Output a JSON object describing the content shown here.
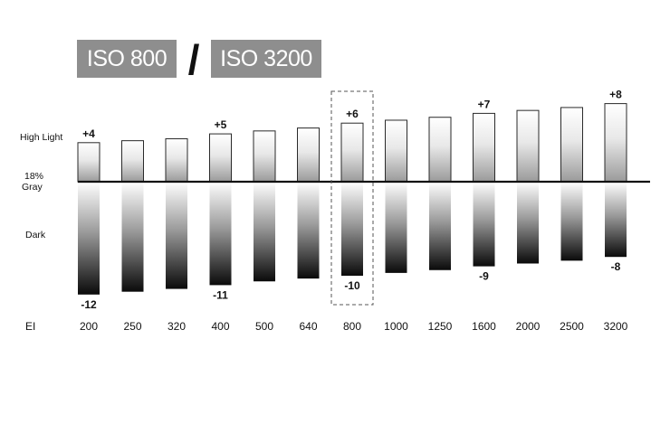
{
  "header": {
    "left_label": "ISO 800",
    "separator": "/",
    "right_label": "ISO 3200"
  },
  "chart_data": {
    "type": "bar",
    "title": "",
    "xlabel": "EI",
    "ylabel": "",
    "y_levels": {
      "high": "High Light",
      "mid": "18% Gray",
      "low": "Dark"
    },
    "categories": [
      "200",
      "250",
      "320",
      "400",
      "500",
      "640",
      "800",
      "1000",
      "1250",
      "1600",
      "2000",
      "2500",
      "3200"
    ],
    "series": [
      {
        "values": [
          4.0,
          4.2,
          4.4,
          4.9,
          5.2,
          5.5,
          6.0,
          6.3,
          6.6,
          7.0,
          7.3,
          7.6,
          8.0
        ]
      },
      {
        "values": [
          -12.0,
          -11.7,
          -11.4,
          -11.0,
          -10.6,
          -10.3,
          -10.0,
          -9.7,
          -9.4,
          -9.0,
          -8.7,
          -8.4,
          -8.0
        ]
      }
    ],
    "annotations": [
      {
        "category": "200",
        "top": "+4",
        "bottom": "-12"
      },
      {
        "category": "400",
        "top": "+5",
        "bottom": "-11"
      },
      {
        "category": "800",
        "top": "+6",
        "bottom": "-10"
      },
      {
        "category": "1600",
        "top": "+7",
        "bottom": "-9"
      },
      {
        "category": "3200",
        "top": "+8",
        "bottom": "-8"
      }
    ],
    "highlighted_category": "800",
    "ylim": [
      -12,
      8
    ]
  }
}
